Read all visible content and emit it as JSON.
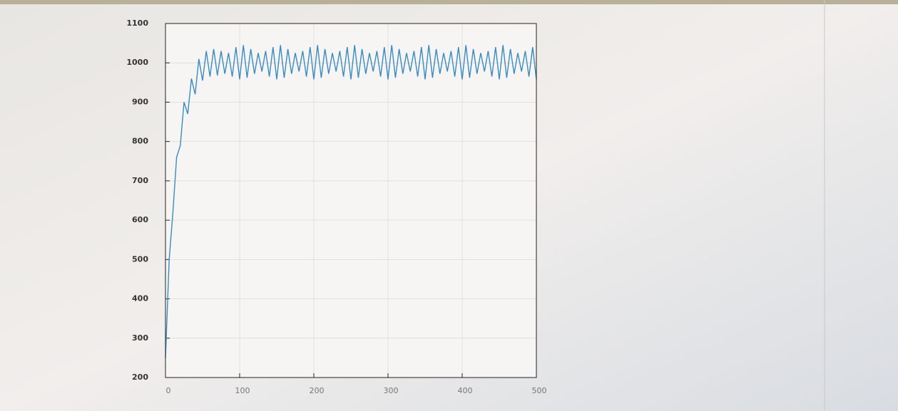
{
  "chart_data": {
    "type": "line",
    "color": "#3a8cc0",
    "grid": true,
    "x": [
      0,
      5,
      10,
      15,
      20,
      25,
      30,
      35,
      40,
      45,
      50,
      55,
      60,
      65,
      70,
      75,
      80,
      85,
      90,
      95,
      100,
      105,
      110,
      115,
      120,
      125,
      130,
      135,
      140,
      145,
      150,
      155,
      160,
      165,
      170,
      175,
      180,
      185,
      190,
      195,
      200,
      205,
      210,
      215,
      220,
      225,
      230,
      235,
      240,
      245,
      250,
      255,
      260,
      265,
      270,
      275,
      280,
      285,
      290,
      295,
      300,
      305,
      310,
      315,
      320,
      325,
      330,
      335,
      340,
      345,
      350,
      355,
      360,
      365,
      370,
      375,
      380,
      385,
      390,
      395,
      400,
      405,
      410,
      415,
      420,
      425,
      430,
      435,
      440,
      445,
      450,
      455,
      460,
      465,
      470,
      475,
      480,
      485,
      490,
      495,
      500
    ],
    "values": [
      250,
      500,
      620,
      760,
      790,
      900,
      870,
      960,
      920,
      1010,
      955,
      1030,
      965,
      1035,
      968,
      1030,
      972,
      1025,
      965,
      1040,
      958,
      1045,
      962,
      1035,
      972,
      1025,
      978,
      1030,
      965,
      1040,
      958,
      1045,
      962,
      1035,
      972,
      1025,
      978,
      1030,
      965,
      1040,
      958,
      1045,
      962,
      1035,
      972,
      1025,
      978,
      1030,
      965,
      1040,
      958,
      1045,
      962,
      1035,
      972,
      1025,
      978,
      1030,
      965,
      1040,
      958,
      1045,
      962,
      1035,
      972,
      1025,
      978,
      1030,
      965,
      1040,
      958,
      1045,
      962,
      1035,
      972,
      1025,
      978,
      1030,
      965,
      1040,
      958,
      1045,
      962,
      1035,
      972,
      1025,
      978,
      1030,
      965,
      1040,
      958,
      1045,
      962,
      1035,
      972,
      1025,
      978,
      1030,
      965,
      1040,
      958
    ],
    "xlim": [
      0,
      500
    ],
    "ylim": [
      200,
      1100
    ],
    "xticks": [
      0,
      100,
      200,
      300,
      400,
      500
    ],
    "yticks": [
      200,
      300,
      400,
      500,
      600,
      700,
      800,
      900,
      1000,
      1100
    ]
  }
}
